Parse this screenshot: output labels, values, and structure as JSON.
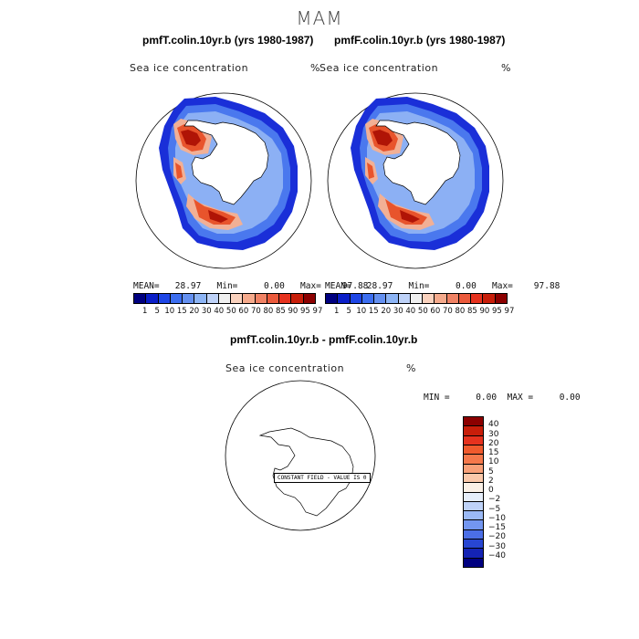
{
  "season": "MAM",
  "panels": {
    "left": {
      "title": "pmfT.colin.10yr.b (yrs 1980-1987)",
      "variable": "Sea ice concentration",
      "units": "%",
      "stats": "MEAN=   28.97   Min=     0.00   Max=    97.88"
    },
    "right": {
      "title": "pmfF.colin.10yr.b (yrs 1980-1987)",
      "variable": "Sea ice concentration",
      "units": "%",
      "stats": "MEAN=   28.97   Min=     0.00   Max=    97.88"
    },
    "diff": {
      "title": "pmfT.colin.10yr.b - pmfF.colin.10yr.b",
      "variable": "Sea ice concentration",
      "units": "%",
      "minmax": "MIN =     0.00  MAX =     0.00",
      "note": "CONSTANT FIELD - VALUE IS 0"
    }
  },
  "colorbar": {
    "tick_labels": "1   5  10 15 20 30 40 50 60 70 80 85 90 95 97",
    "colors": [
      "#000080",
      "#0a1ec8",
      "#1e46e6",
      "#3c6ef0",
      "#6490f0",
      "#8cb4f5",
      "#bed2f8",
      "#f0f0f0",
      "#fad2be",
      "#f5aa8c",
      "#f08264",
      "#eb5a3c",
      "#e6321e",
      "#c81e0a",
      "#8c0000"
    ]
  },
  "diff_colorbar": {
    "labels": [
      "40",
      "30",
      "20",
      "15",
      "10",
      "5",
      "2",
      "0",
      "−2",
      "−5",
      "−10",
      "−15",
      "−20",
      "−30",
      "−40"
    ],
    "colors": [
      "#8c0000",
      "#c81e0a",
      "#e6321e",
      "#f05a2d",
      "#f5784b",
      "#f8a078",
      "#fac8aa",
      "#faf0e6",
      "#e6eefa",
      "#bed2f8",
      "#9bb9f5",
      "#7396f0",
      "#4b6ee6",
      "#2846d2",
      "#1423b4",
      "#000080"
    ]
  }
}
